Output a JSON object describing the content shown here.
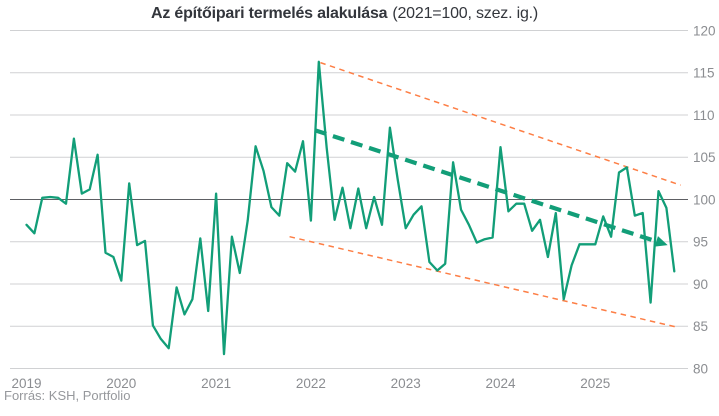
{
  "title": {
    "main": "Az építőipari termelés alakulása",
    "suffix": "(2021=100, szez. ig.)"
  },
  "source": "Forrás: KSH, Portfolio",
  "chart_data": {
    "type": "line",
    "title": "Az építőipari termelés alakulása (2021=100, szez. ig.)",
    "frequency": "monthly",
    "period_start": "2019-01",
    "period_end": "2025-11",
    "x_tick_labels": [
      "2019",
      "2020",
      "2021",
      "2022",
      "2023",
      "2024",
      "2025"
    ],
    "months_per_tick": 12,
    "ylim": [
      80,
      120
    ],
    "y_ticks": [
      80,
      85,
      90,
      95,
      100,
      105,
      110,
      115,
      120
    ],
    "grid": "horizontal-only",
    "legend": "none",
    "series": [
      {
        "name": "építőipari termelés (szez. ig., 2021=100)",
        "color": "#129e78",
        "values": [
          97.0,
          96.0,
          100.2,
          100.3,
          100.2,
          99.5,
          107.2,
          100.7,
          101.2,
          105.3,
          93.7,
          93.2,
          90.4,
          101.9,
          94.6,
          95.1,
          85.1,
          83.5,
          82.4,
          89.6,
          86.4,
          88.2,
          95.4,
          86.8,
          100.7,
          81.7,
          95.6,
          91.3,
          97.5,
          106.3,
          103.4,
          99.1,
          98.1,
          104.3,
          103.3,
          106.9,
          97.5,
          116.3,
          106.1,
          97.6,
          101.4,
          96.6,
          101.3,
          96.6,
          100.3,
          97.0,
          108.5,
          102.3,
          96.6,
          98.2,
          99.2,
          92.6,
          91.6,
          92.4,
          104.4,
          98.8,
          97.0,
          94.9,
          95.3,
          95.5,
          106.2,
          98.6,
          99.5,
          99.5,
          96.3,
          97.6,
          93.2,
          98.4,
          88.2,
          92.2,
          94.7,
          94.7,
          94.7,
          98.0,
          95.6,
          103.2,
          103.8,
          98.1,
          98.4,
          87.8,
          101.0,
          99.0,
          91.5
        ]
      }
    ],
    "trend_arrow": {
      "color": "#129e78",
      "style": "thick-dashed-with-arrowhead",
      "from": {
        "month_index": 36.5,
        "value": 108.2
      },
      "to": {
        "month_index": 80.2,
        "value": 94.9
      }
    },
    "channel_lines": {
      "color": "#fd7e45",
      "style": "dashed",
      "upper": {
        "from": {
          "month_index": 37.2,
          "value": 116.2
        },
        "to": {
          "month_index": 82.8,
          "value": 101.7
        }
      },
      "lower": {
        "from": {
          "month_index": 33.3,
          "value": 95.6
        },
        "to": {
          "month_index": 82.3,
          "value": 84.9
        }
      }
    },
    "axis_colors": {
      "grid": "#d0d1d3",
      "grid_100_line": "#5d5f63",
      "tick_label": "#8b8d91",
      "title": "#33363c"
    }
  }
}
